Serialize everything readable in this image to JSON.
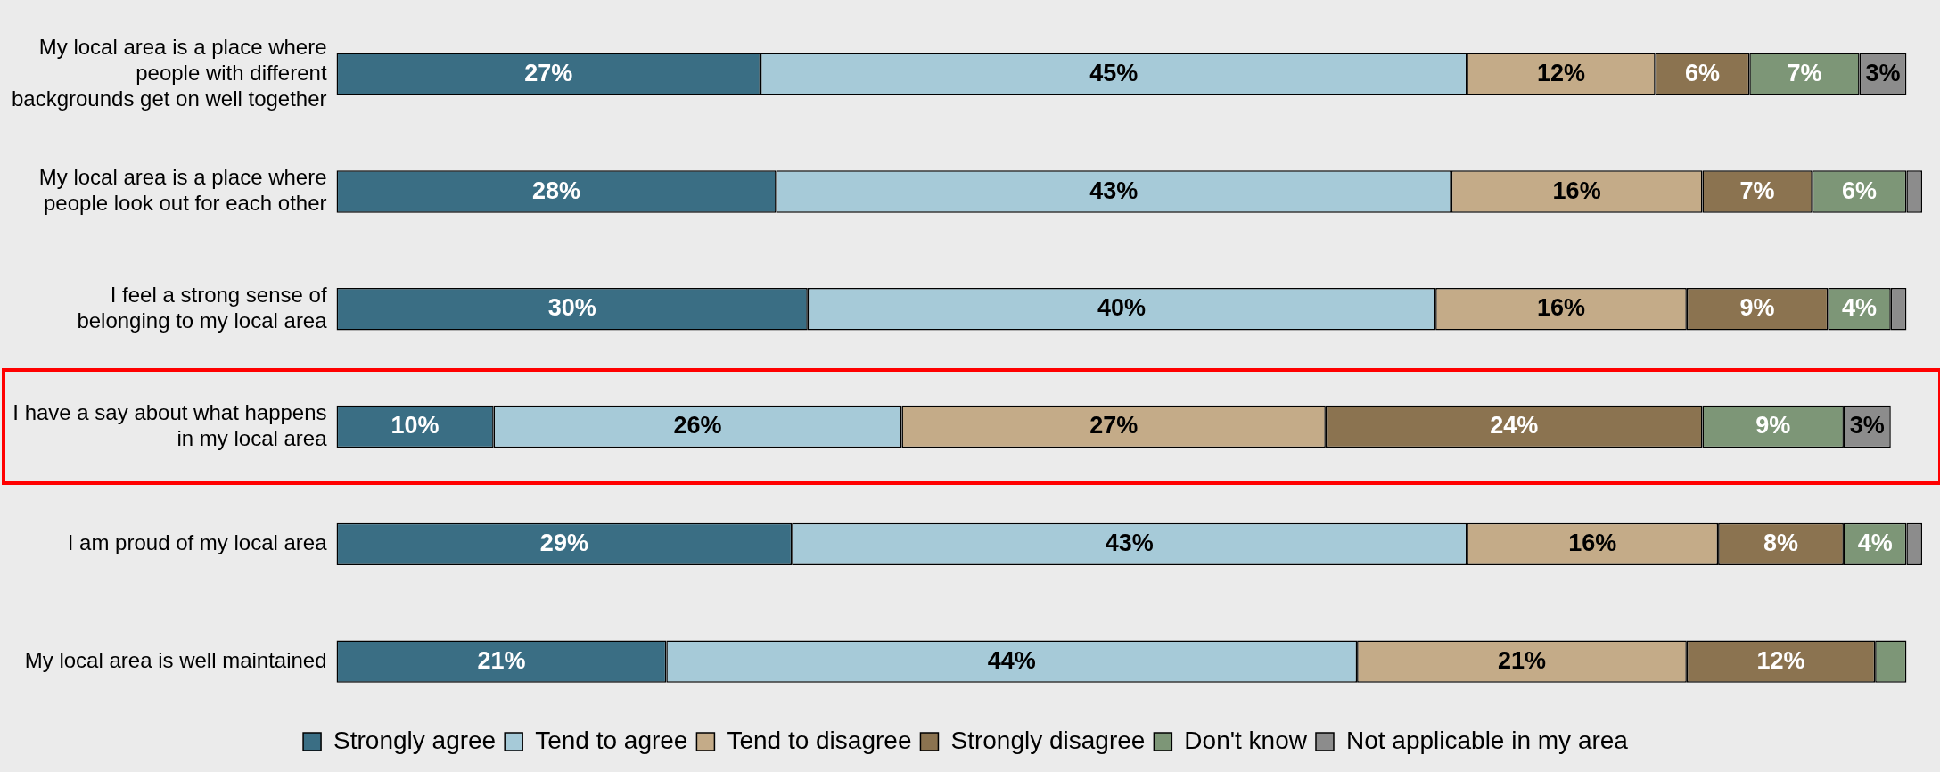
{
  "chart_data": {
    "type": "bar",
    "orientation": "horizontal",
    "stacked": true,
    "legend": "bottom",
    "tick_labels": "y",
    "categories": [
      "My local area is a place where people with different backgrounds get on well together",
      "My local area is a place where people look out for each other",
      "I feel a strong sense of belonging to my local area",
      "I have a say about what happens in my local area",
      "I am proud of my local area",
      "My local area is well maintained"
    ],
    "series": [
      {
        "name": "Strongly agree",
        "color": "#3a6e84",
        "values": [
          27,
          28,
          30,
          10,
          29,
          21
        ],
        "value_labels": [
          "27%",
          "28%",
          "30%",
          "10%",
          "29%",
          "21%"
        ]
      },
      {
        "name": "Tend to agree",
        "color": "#a6cad8",
        "values": [
          45,
          43,
          40,
          26,
          43,
          44
        ],
        "value_labels": [
          "45%",
          "43%",
          "40%",
          "26%",
          "43%",
          "44%"
        ]
      },
      {
        "name": "Tend to disagree",
        "color": "#c4ab88",
        "values": [
          12,
          16,
          16,
          27,
          16,
          21
        ],
        "value_labels": [
          "12%",
          "16%",
          "16%",
          "27%",
          "16%",
          "21%"
        ]
      },
      {
        "name": "Strongly disagree",
        "color": "#8b7350",
        "values": [
          6,
          7,
          9,
          24,
          8,
          12
        ],
        "value_labels": [
          "6%",
          "7%",
          "9%",
          "24%",
          "8%",
          "12%"
        ]
      },
      {
        "name": "Don't know",
        "color": "#7d9677",
        "values": [
          7,
          6,
          4,
          9,
          4,
          2
        ],
        "value_labels": [
          "7%",
          "6%",
          "4%",
          "9%",
          "4%",
          null
        ]
      },
      {
        "name": "Not applicable in my area",
        "color": "#8c8c8c",
        "values": [
          3,
          1,
          1,
          3,
          1,
          null
        ],
        "value_labels": [
          "3%",
          null,
          null,
          "3%",
          null,
          null
        ]
      }
    ]
  }
}
